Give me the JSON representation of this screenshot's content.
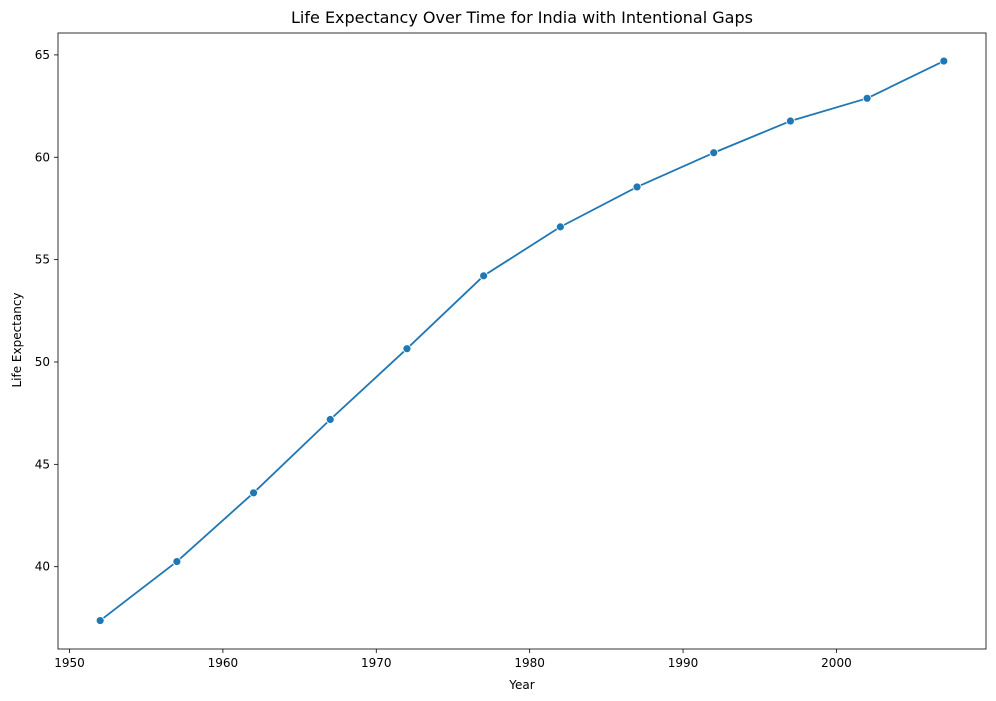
{
  "chart_data": {
    "type": "line",
    "title": "Life Expectancy Over Time for India with Intentional Gaps",
    "xlabel": "Year",
    "ylabel": "Life Expectancy",
    "xlim": [
      1949.25,
      2009.75
    ],
    "ylim": [
      35.98,
      66.07
    ],
    "xticks": [
      1950,
      1960,
      1970,
      1980,
      1990,
      2000
    ],
    "yticks": [
      40,
      45,
      50,
      55,
      60,
      65
    ],
    "grid": false,
    "series": [
      {
        "color": "#1f77b4",
        "marker": "circle",
        "x": [
          1952,
          1957,
          1962,
          1967,
          1972,
          1977,
          1982,
          1987,
          1992,
          1997,
          2002,
          2007
        ],
        "y": [
          37.37,
          40.25,
          43.61,
          47.19,
          50.65,
          54.21,
          56.6,
          58.55,
          60.22,
          61.77,
          62.88,
          64.7
        ]
      }
    ]
  }
}
